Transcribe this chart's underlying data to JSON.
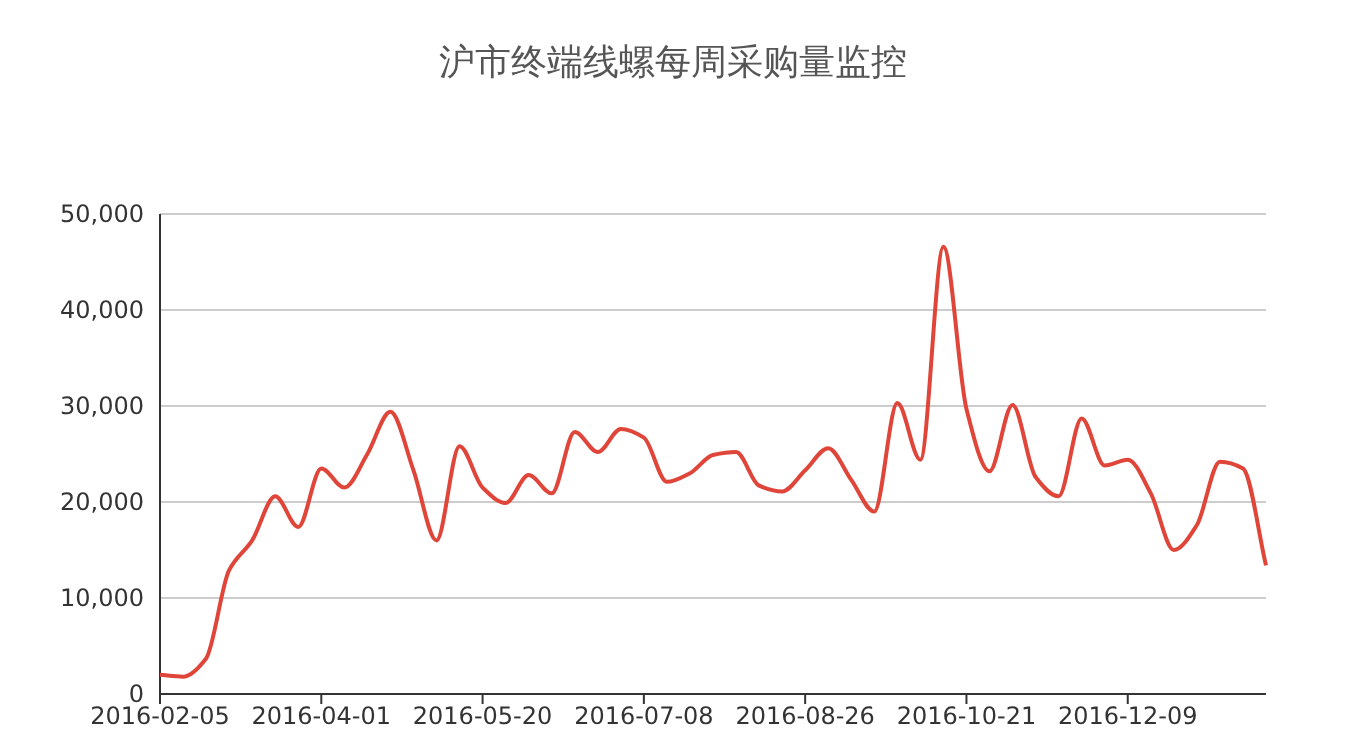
{
  "chart_data": {
    "type": "line",
    "title": "沪市终端线螺每周采购量监控",
    "categories": [
      "2016-02-05",
      null,
      null,
      null,
      null,
      null,
      null,
      "2016-04-01",
      null,
      null,
      null,
      null,
      null,
      null,
      "2016-05-20",
      null,
      null,
      null,
      null,
      null,
      null,
      "2016-07-08",
      null,
      null,
      null,
      null,
      null,
      null,
      "2016-08-26",
      null,
      null,
      null,
      null,
      null,
      null,
      "2016-10-21",
      null,
      null,
      null,
      null,
      null,
      null,
      "2016-12-09",
      null,
      null,
      null,
      null,
      null,
      null
    ],
    "series": [
      {
        "color": "#e0453a",
        "values": [
          2000,
          1800,
          3700,
          12900,
          16000,
          20600,
          17400,
          23500,
          21500,
          25000,
          29400,
          23300,
          16000,
          25800,
          21500,
          19900,
          22800,
          20900,
          27300,
          25200,
          27600,
          26700,
          22100,
          23000,
          24900,
          25200,
          21700,
          21100,
          23300,
          25600,
          22300,
          19000,
          30300,
          24400,
          46600,
          29700,
          23200,
          30100,
          22600,
          20600,
          28700,
          23800,
          24400,
          20900,
          15000,
          17600,
          24200,
          23500,
          13400
        ]
      }
    ],
    "ylim": [
      0,
      50000
    ],
    "yticks": [
      {
        "value": 0,
        "label": "0"
      },
      {
        "value": 10000,
        "label": "10,000"
      },
      {
        "value": 20000,
        "label": "20,000"
      },
      {
        "value": 30000,
        "label": "30,000"
      },
      {
        "value": 40000,
        "label": "40,000"
      },
      {
        "value": 50000,
        "label": "50,000"
      }
    ],
    "grid": "y",
    "marker": "none",
    "line_style": "solid"
  }
}
